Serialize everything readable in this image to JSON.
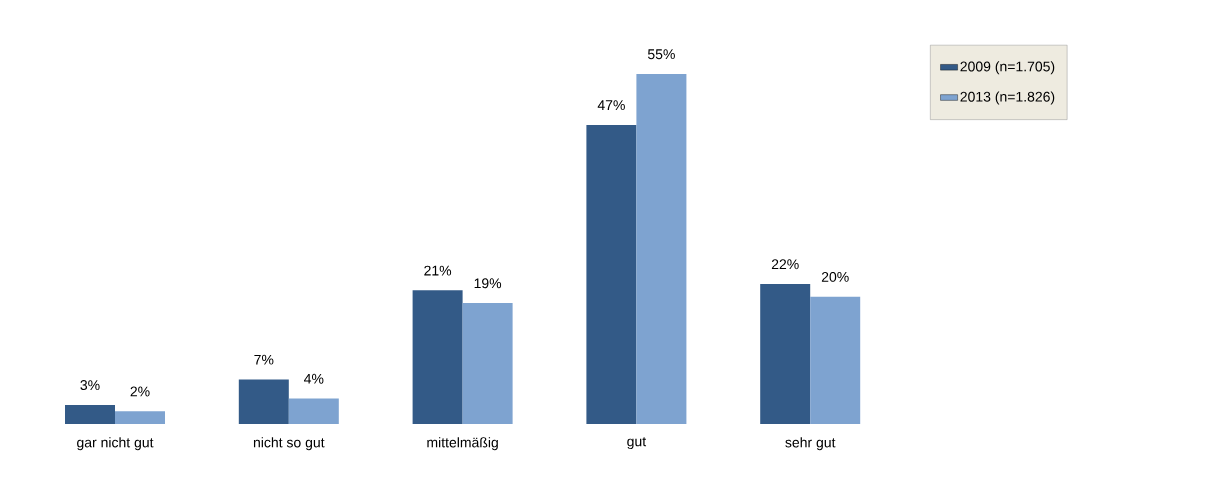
{
  "chart_data": {
    "type": "bar",
    "categories": [
      "gar nicht gut",
      "nicht so gut",
      "mittelmäßig",
      "gut",
      "sehr gut"
    ],
    "series": [
      {
        "name": "2009 (n=1.705)",
        "color": "#335a87",
        "values": [
          3,
          7,
          21,
          47,
          22
        ],
        "value_labels": [
          "3%",
          "7%",
          "21%",
          "47%",
          "22%"
        ]
      },
      {
        "name": "2013 (n=1.826)",
        "color": "#7ea3d0",
        "values": [
          2,
          4,
          19,
          55,
          20
        ],
        "value_labels": [
          "2%",
          "4%",
          "19%",
          "55%",
          "20%"
        ]
      }
    ],
    "legend": "top right"
  }
}
